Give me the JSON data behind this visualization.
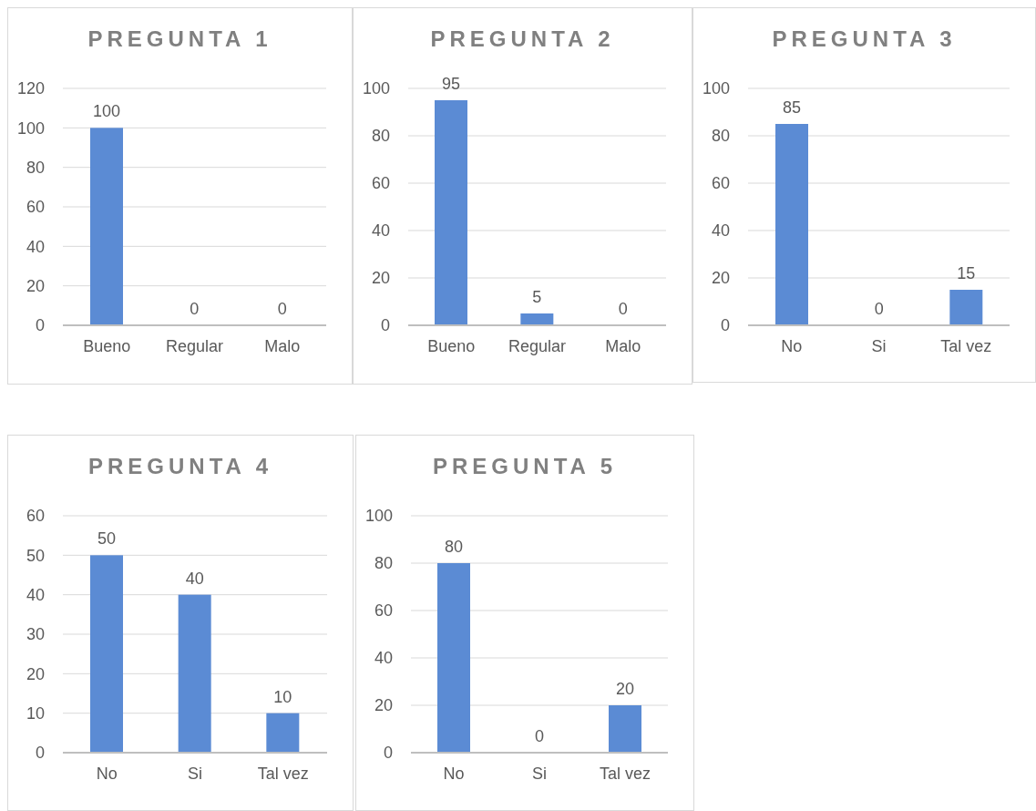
{
  "chart_data": [
    {
      "type": "bar",
      "title": "PREGUNTA 1",
      "categories": [
        "Bueno",
        "Regular",
        "Malo"
      ],
      "values": [
        100,
        0,
        0
      ],
      "color": "#5b8bd4",
      "ylim": [
        0,
        120
      ],
      "yticks": [
        0,
        20,
        40,
        60,
        80,
        100,
        120
      ],
      "grid": "y",
      "data_labels": true
    },
    {
      "type": "bar",
      "title": "PREGUNTA 2",
      "categories": [
        "Bueno",
        "Regular",
        "Malo"
      ],
      "values": [
        95,
        5,
        0
      ],
      "color": "#5b8bd4",
      "ylim": [
        0,
        100
      ],
      "yticks": [
        0,
        20,
        40,
        60,
        80,
        100
      ],
      "grid": "y",
      "data_labels": true
    },
    {
      "type": "bar",
      "title": "PREGUNTA 3",
      "categories": [
        "No",
        "Si",
        "Tal vez"
      ],
      "values": [
        85,
        0,
        15
      ],
      "color": "#5b8bd4",
      "ylim": [
        0,
        100
      ],
      "yticks": [
        0,
        20,
        40,
        60,
        80,
        100
      ],
      "grid": "y",
      "data_labels": true
    },
    {
      "type": "bar",
      "title": "PREGUNTA 4",
      "categories": [
        "No",
        "Si",
        "Tal vez"
      ],
      "values": [
        50,
        40,
        10
      ],
      "color": "#5b8bd4",
      "ylim": [
        0,
        60
      ],
      "yticks": [
        0,
        10,
        20,
        30,
        40,
        50,
        60
      ],
      "grid": "y",
      "data_labels": true
    },
    {
      "type": "bar",
      "title": "PREGUNTA 5",
      "categories": [
        "No",
        "Si",
        "Tal vez"
      ],
      "values": [
        80,
        0,
        20
      ],
      "color": "#5b8bd4",
      "ylim": [
        0,
        100
      ],
      "yticks": [
        0,
        20,
        40,
        60,
        80,
        100
      ],
      "grid": "y",
      "data_labels": true
    }
  ]
}
